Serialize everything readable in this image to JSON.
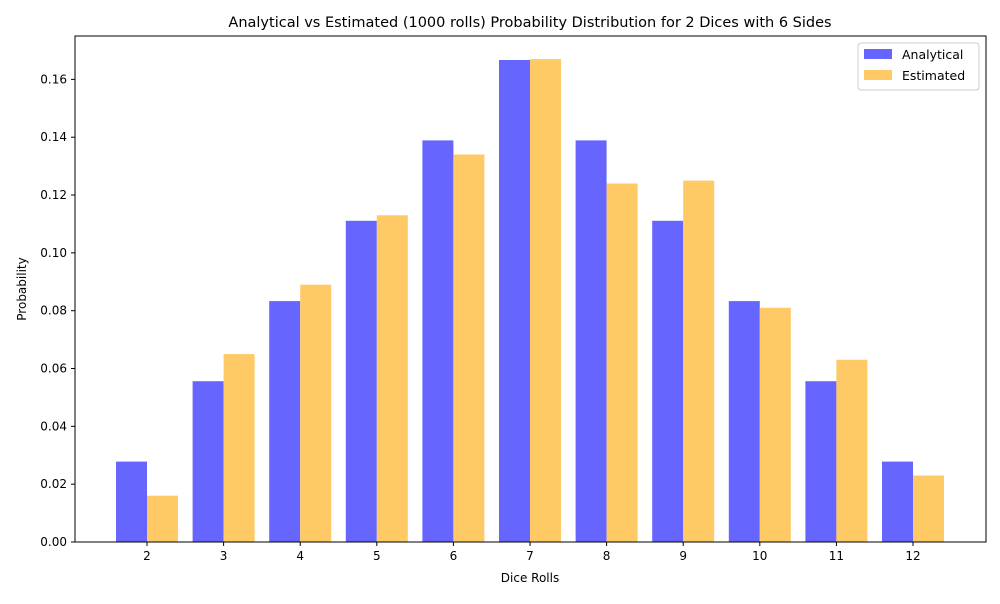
{
  "chart_data": {
    "type": "bar",
    "title": "Analytical vs Estimated (1000 rolls) Probability Distribution for 2 Dices with 6 Sides",
    "xlabel": "Dice Rolls",
    "ylabel": "Probability",
    "categories": [
      "2",
      "3",
      "4",
      "5",
      "6",
      "7",
      "8",
      "9",
      "10",
      "11",
      "12"
    ],
    "series": [
      {
        "name": "Analytical",
        "color": "#6666ff",
        "values": [
          0.0278,
          0.0556,
          0.0833,
          0.1111,
          0.1389,
          0.1667,
          0.1389,
          0.1111,
          0.0833,
          0.0556,
          0.0278
        ]
      },
      {
        "name": "Estimated",
        "color": "#ffc966",
        "values": [
          0.016,
          0.065,
          0.089,
          0.113,
          0.134,
          0.167,
          0.124,
          0.125,
          0.081,
          0.063,
          0.023
        ]
      }
    ],
    "ylim": [
      0,
      0.175
    ],
    "yticks": [
      "0.00",
      "0.02",
      "0.04",
      "0.06",
      "0.08",
      "0.10",
      "0.12",
      "0.14",
      "0.16"
    ],
    "ytick_values": [
      0,
      0.02,
      0.04,
      0.06,
      0.08,
      0.1,
      0.12,
      0.14,
      0.16
    ],
    "grid": false,
    "legend_position": "top-right"
  }
}
